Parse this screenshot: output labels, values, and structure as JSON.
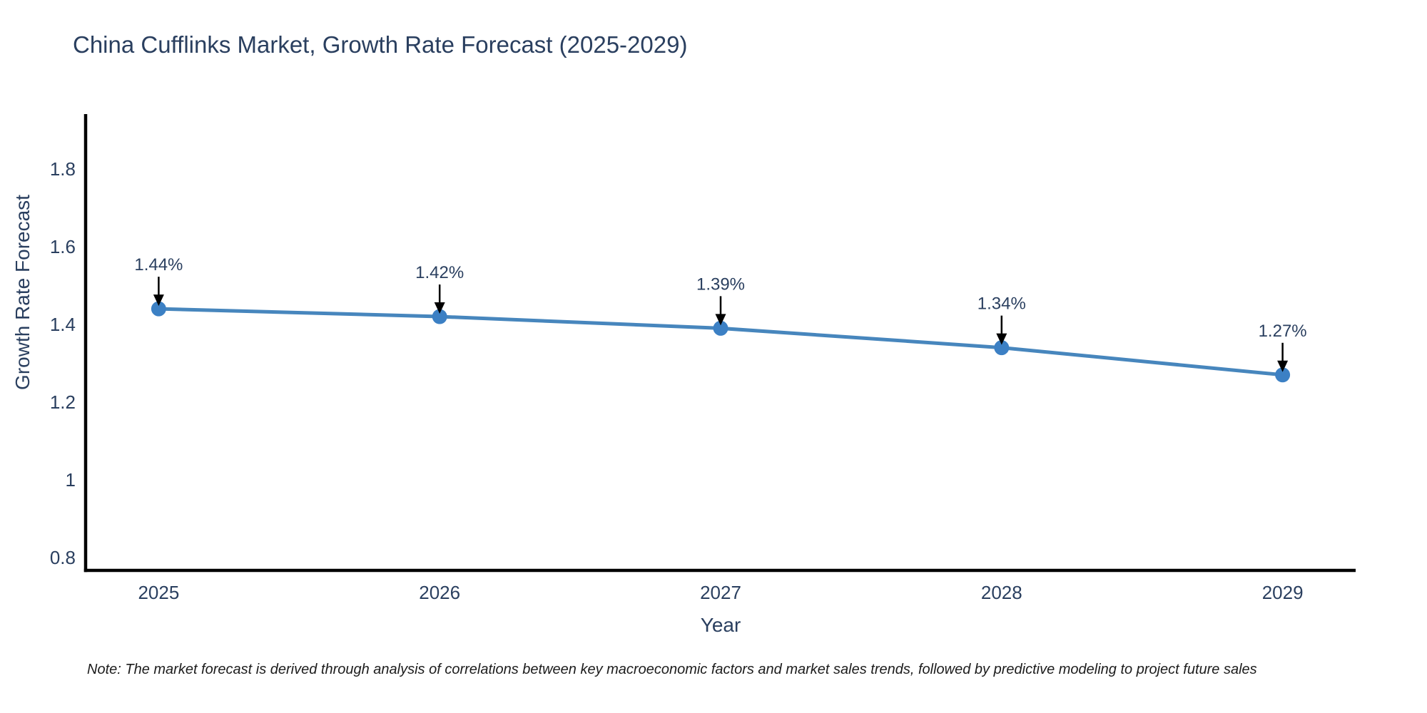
{
  "chart_data": {
    "type": "line",
    "title": "China Cufflinks Market, Growth Rate Forecast (2025-2029)",
    "xlabel": "Year",
    "ylabel": "Growth Rate Forecast",
    "x": [
      2025,
      2026,
      2027,
      2028,
      2029
    ],
    "values": [
      1.44,
      1.42,
      1.39,
      1.34,
      1.27
    ],
    "point_labels": [
      "1.44%",
      "1.42%",
      "1.39%",
      "1.34%",
      "1.27%"
    ],
    "x_tick_labels": [
      "2025",
      "2026",
      "2027",
      "2028",
      "2029"
    ],
    "y_ticks": [
      0.8,
      1.0,
      1.2,
      1.4,
      1.6,
      1.8
    ],
    "y_tick_labels": [
      "0.8",
      "1",
      "1.2",
      "1.4",
      "1.6",
      "1.8"
    ],
    "xlim": [
      2024.74,
      2029.26
    ],
    "ylim": [
      0.767,
      1.941
    ],
    "grid": false,
    "legend_position": "none",
    "note": "Note: The market forecast is derived through analysis of correlations between key macroeconomic factors and market sales trends, followed by predictive modeling to project future sales",
    "colors": {
      "line": "#4786bd",
      "marker": "#3c80c4",
      "text": "#2a3f5f",
      "axis": "#000000",
      "arrow": "#000000",
      "note_text": "#1c1c1c",
      "background": "#ffffff"
    }
  }
}
